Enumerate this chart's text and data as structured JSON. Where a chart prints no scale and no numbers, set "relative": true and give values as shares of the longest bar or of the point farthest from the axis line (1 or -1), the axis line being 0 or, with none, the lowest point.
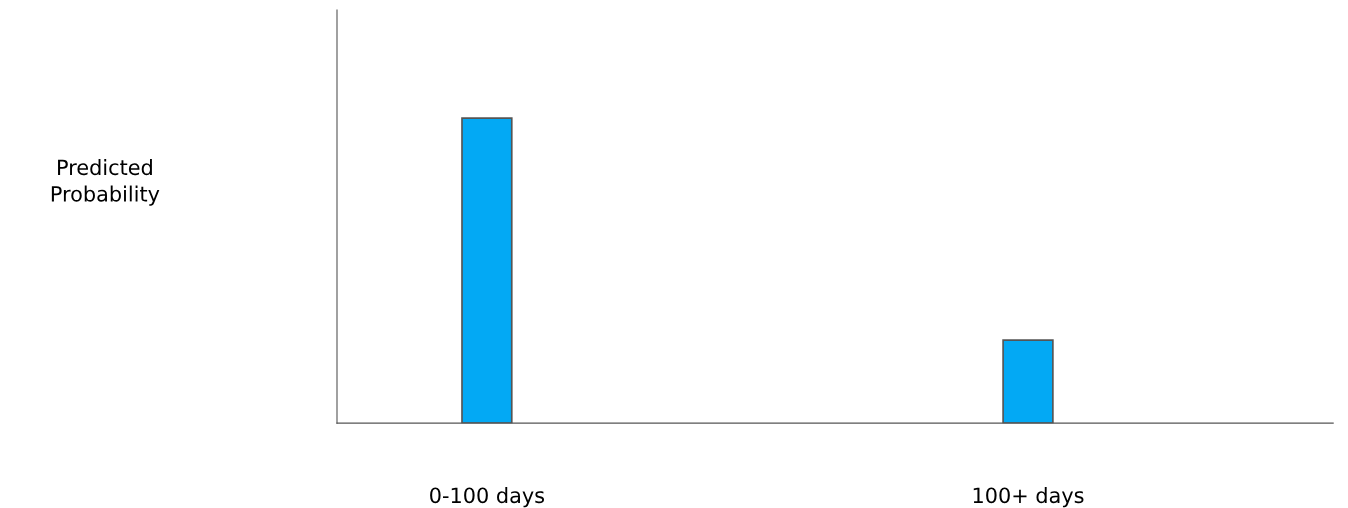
{
  "chart_data": {
    "type": "bar",
    "annotations": [
      "Predicted\nProbability"
    ],
    "categories": [
      "0-100 days",
      "100+ days"
    ],
    "values": [
      1,
      0.272
    ],
    "color": "#03a9f4",
    "relative": true,
    "grid": false
  }
}
